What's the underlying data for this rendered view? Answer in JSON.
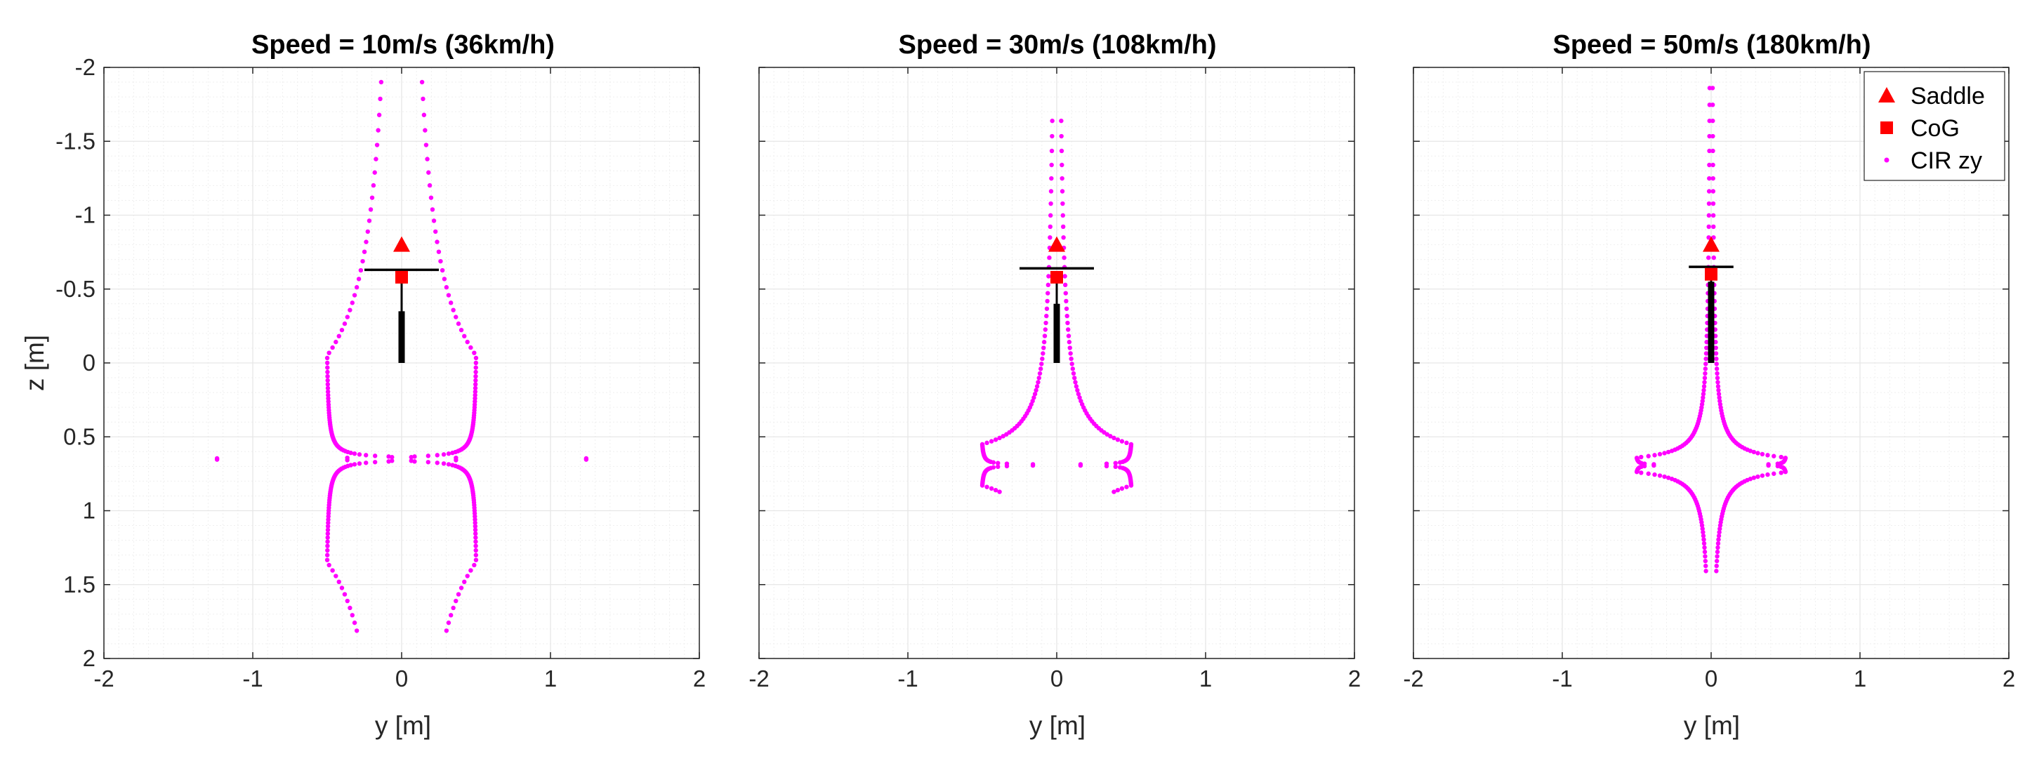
{
  "chart_data": [
    {
      "type": "scatter",
      "title": "Speed = 10m/s (36km/h)",
      "xlabel": "y [m]",
      "ylabel": "z [m]",
      "xlim": [
        -2,
        2
      ],
      "ylim": [
        -2,
        2
      ],
      "y_axis_reversed": true,
      "x_ticks": [
        "-2",
        "-1",
        "0",
        "1",
        "2"
      ],
      "y_ticks": [
        "-2",
        "-1.5",
        "-1",
        "-0.5",
        "0",
        "0.5",
        "1",
        "1.5",
        "2"
      ],
      "grid": "major and minor",
      "saddle": [
        0,
        -0.8
      ],
      "cog": [
        0,
        -0.58
      ],
      "structure": {
        "handlebar": {
          "y": [
            -0.25,
            0.25
          ],
          "z": -0.63
        },
        "post": {
          "y": 0,
          "z": [
            -0.58,
            0
          ]
        },
        "fork": {
          "y": 0,
          "z": [
            -0.35,
            0
          ]
        }
      },
      "cir_curve": {
        "a": 0.35,
        "b": 0.65,
        "z_min": -1.96,
        "z_max": 1.86
      }
    },
    {
      "type": "scatter",
      "title": "Speed = 30m/s (108km/h)",
      "xlabel": "y [m]",
      "ylabel": "",
      "xlim": [
        -2,
        2
      ],
      "ylim": [
        -2,
        2
      ],
      "y_axis_reversed": true,
      "x_ticks": [
        "-2",
        "-1",
        "0",
        "1",
        "2"
      ],
      "grid": "major and minor",
      "saddle": [
        0,
        -0.8
      ],
      "cog": [
        0,
        -0.58
      ],
      "structure": {
        "handlebar": {
          "y": [
            -0.25,
            0.25
          ],
          "z": -0.64
        },
        "post": {
          "y": 0,
          "z": [
            -0.58,
            0
          ]
        },
        "fork": {
          "y": 0,
          "z": [
            -0.4,
            0
          ]
        }
      },
      "cir_curve": {
        "a": 0.07,
        "b": 0.69,
        "z_min": -1.73,
        "z_max": 0.88
      }
    },
    {
      "type": "scatter",
      "title": "Speed = 50m/s (180km/h)",
      "xlabel": "y [m]",
      "ylabel": "",
      "xlim": [
        -2,
        2
      ],
      "ylim": [
        -2,
        2
      ],
      "y_axis_reversed": true,
      "x_ticks": [
        "-2",
        "-1",
        "0",
        "1",
        "2"
      ],
      "grid": "major and minor",
      "saddle": [
        0,
        -0.8
      ],
      "cog": [
        0,
        -0.6
      ],
      "structure": {
        "handlebar": {
          "y": [
            -0.15,
            0.15
          ],
          "z": -0.65
        },
        "post": {
          "y": 0,
          "z": [
            -0.6,
            0
          ]
        },
        "fork": {
          "y": 0,
          "z": [
            -0.55,
            0
          ]
        }
      },
      "cir_curve": {
        "a": 0.025,
        "b": 0.69,
        "z_min": -1.89,
        "z_max": 1.41
      },
      "legend": {
        "location": "top-right",
        "entries": [
          {
            "label": "Saddle",
            "marker": "triangle",
            "color": "#ff0000"
          },
          {
            "label": "CoG",
            "marker": "square",
            "color": "#ff0000"
          },
          {
            "label": "CIR zy",
            "marker": "dot",
            "color": "#ff00ff"
          }
        ]
      }
    }
  ],
  "colors": {
    "saddle": "#ff0000",
    "cog": "#ff0000",
    "cir": "#ff00ff",
    "structure": "#000000",
    "grid": "#e6e6e6",
    "axis": "#262626"
  }
}
